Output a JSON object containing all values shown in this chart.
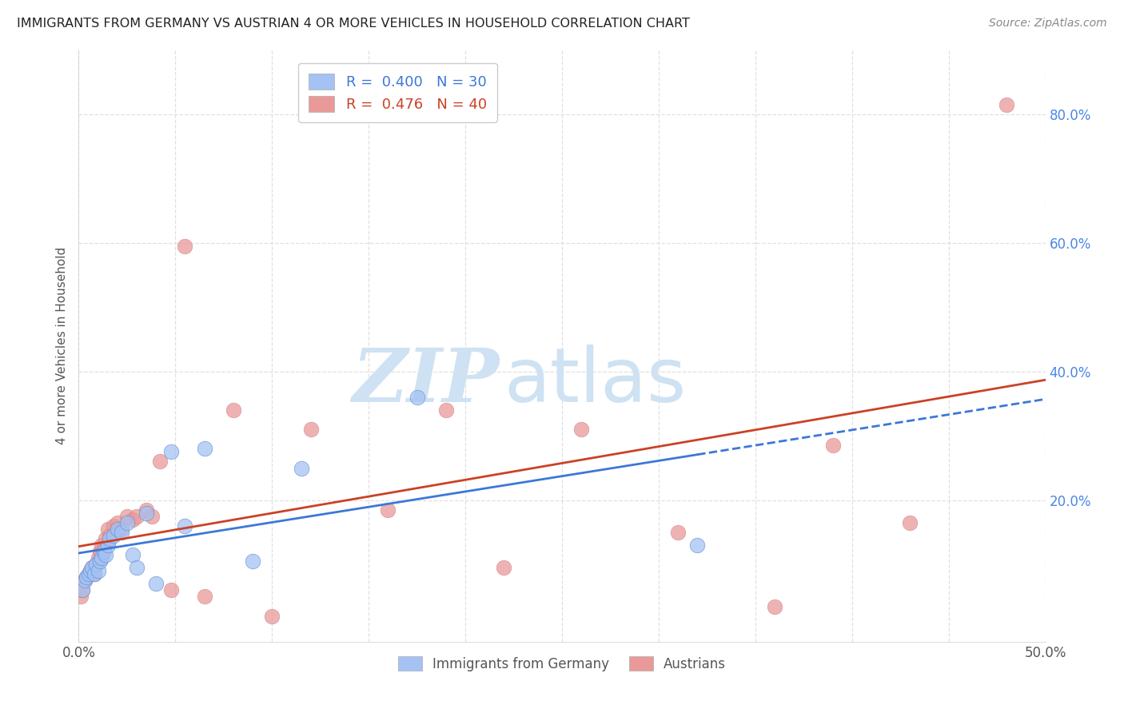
{
  "title": "IMMIGRANTS FROM GERMANY VS AUSTRIAN 4 OR MORE VEHICLES IN HOUSEHOLD CORRELATION CHART",
  "source": "Source: ZipAtlas.com",
  "ylabel": "4 or more Vehicles in Household",
  "xlim": [
    0.0,
    0.5
  ],
  "ylim": [
    -0.02,
    0.9
  ],
  "xticks": [
    0.0,
    0.05,
    0.1,
    0.15,
    0.2,
    0.25,
    0.3,
    0.35,
    0.4,
    0.45,
    0.5
  ],
  "xticklabels_show": [
    "0.0%",
    "50.0%"
  ],
  "xticklabels_pos": [
    0.0,
    0.5
  ],
  "yticks": [
    0.0,
    0.2,
    0.4,
    0.6,
    0.8
  ],
  "yticklabels": [
    "",
    "20.0%",
    "40.0%",
    "60.0%",
    "80.0%"
  ],
  "germany_color": "#a4c2f4",
  "germany_line_color": "#3c78d8",
  "austria_color": "#ea9999",
  "austria_line_color": "#cc4125",
  "germany_R": 0.4,
  "germany_N": 30,
  "austria_R": 0.476,
  "austria_N": 40,
  "germany_points_x": [
    0.002,
    0.003,
    0.004,
    0.005,
    0.006,
    0.007,
    0.008,
    0.009,
    0.01,
    0.011,
    0.012,
    0.013,
    0.014,
    0.015,
    0.016,
    0.018,
    0.02,
    0.022,
    0.025,
    0.028,
    0.03,
    0.035,
    0.04,
    0.048,
    0.055,
    0.065,
    0.09,
    0.115,
    0.175,
    0.32
  ],
  "germany_points_y": [
    0.06,
    0.075,
    0.08,
    0.085,
    0.09,
    0.095,
    0.085,
    0.1,
    0.09,
    0.105,
    0.11,
    0.12,
    0.115,
    0.13,
    0.14,
    0.145,
    0.155,
    0.15,
    0.165,
    0.115,
    0.095,
    0.18,
    0.07,
    0.275,
    0.16,
    0.28,
    0.105,
    0.25,
    0.36,
    0.13
  ],
  "austria_points_x": [
    0.001,
    0.002,
    0.003,
    0.004,
    0.005,
    0.006,
    0.007,
    0.008,
    0.009,
    0.01,
    0.011,
    0.012,
    0.013,
    0.014,
    0.015,
    0.016,
    0.018,
    0.02,
    0.022,
    0.025,
    0.028,
    0.03,
    0.035,
    0.038,
    0.042,
    0.048,
    0.055,
    0.065,
    0.08,
    0.1,
    0.12,
    0.16,
    0.19,
    0.22,
    0.26,
    0.31,
    0.36,
    0.39,
    0.43,
    0.48
  ],
  "austria_points_y": [
    0.05,
    0.06,
    0.075,
    0.08,
    0.085,
    0.09,
    0.095,
    0.085,
    0.1,
    0.11,
    0.12,
    0.13,
    0.125,
    0.14,
    0.155,
    0.145,
    0.16,
    0.165,
    0.155,
    0.175,
    0.17,
    0.175,
    0.185,
    0.175,
    0.26,
    0.06,
    0.595,
    0.05,
    0.34,
    0.02,
    0.31,
    0.185,
    0.34,
    0.095,
    0.31,
    0.15,
    0.035,
    0.285,
    0.165,
    0.815
  ],
  "watermark_zip": "ZIP",
  "watermark_atlas": "atlas",
  "watermark_color": "#cfe2f3",
  "background_color": "#ffffff",
  "grid_color": "#e0e0e0",
  "legend_R_N_blue": "#3c78d8",
  "legend_R_N_pink": "#cc4125",
  "ytick_color": "#4a86e8"
}
